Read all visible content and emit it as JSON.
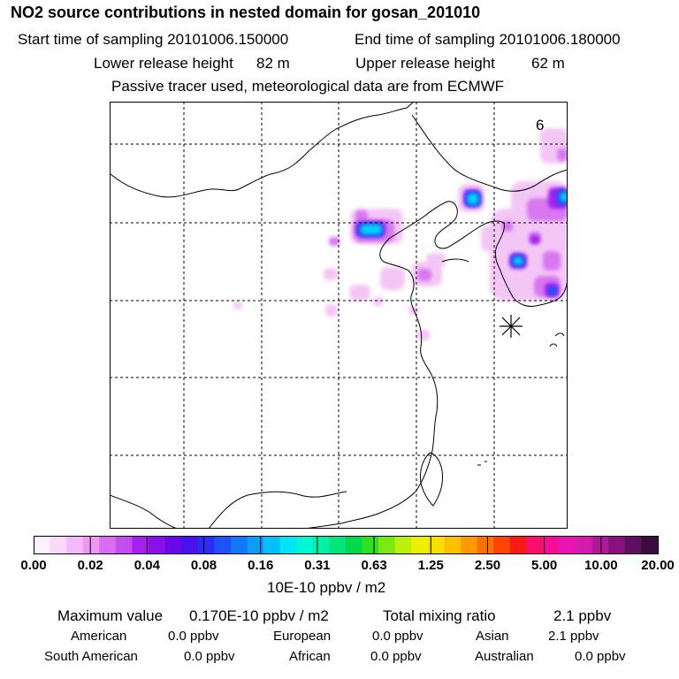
{
  "header": {
    "title": "NO2 source contributions in nested domain for gosan_201010",
    "start_label": "Start time of sampling 20101006.150000",
    "end_label": "End time of sampling 20101006.180000",
    "lower_label": "Lower release height",
    "lower_value": "82 m",
    "upper_label": "Upper release height",
    "upper_value": "62 m",
    "tracer_note": "Passive tracer used, meteorological data are from ECMWF"
  },
  "map": {
    "panel_number": "6",
    "receptor_marker": "asterisk-icon"
  },
  "colorbar": {
    "swatches": [
      "#fef0fe",
      "#fcd8fc",
      "#f6b8f8",
      "#f096f4",
      "#d86cf0",
      "#c24cf0",
      "#a820ee",
      "#8a10ea",
      "#6a08ea",
      "#4a10ee",
      "#2c2cf2",
      "#1e52f6",
      "#1278f8",
      "#0a9ef8",
      "#04c0f8",
      "#00e4f6",
      "#00f6d6",
      "#00f0a6",
      "#00e678",
      "#00d84a",
      "#30e020",
      "#7ae812",
      "#bcf008",
      "#eeee00",
      "#fae000",
      "#fcc000",
      "#fc9a00",
      "#fc7000",
      "#fc4400",
      "#f81a18",
      "#f8106a",
      "#f80c98",
      "#ea14b2",
      "#d41cac",
      "#b0189c",
      "#8a1080",
      "#601060",
      "#3c0c3c"
    ],
    "labels": [
      "0.00",
      "0.02",
      "0.04",
      "0.08",
      "0.16",
      "0.31",
      "0.63",
      "1.25",
      "2.50",
      "5.00",
      "10.00",
      "20.00"
    ],
    "unit": "10E-10 ppbv / m2"
  },
  "summary": {
    "max_label": "Maximum value",
    "max_value": "0.170E-10 ppbv / m2",
    "total_label": "Total mixing ratio",
    "total_value": "2.1 ppbv",
    "regions": [
      {
        "name": "American",
        "value": "0.0 ppbv"
      },
      {
        "name": "European",
        "value": "0.0 ppbv"
      },
      {
        "name": "Asian",
        "value": "2.1 ppbv"
      },
      {
        "name": "South American",
        "value": "0.0 ppbv"
      },
      {
        "name": "African",
        "value": "0.0 ppbv"
      },
      {
        "name": "Australian",
        "value": "0.0 ppbv"
      }
    ]
  }
}
